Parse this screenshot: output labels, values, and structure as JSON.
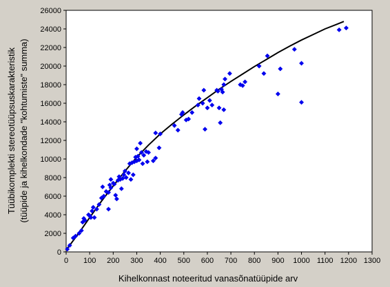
{
  "chart_data": {
    "type": "scatter",
    "title": "",
    "xlabel": "Kihelkonnast noteeritud vanasõnatüüpide arv",
    "ylabel": "Tüübikomplekti stereotüüpsuskarakteristik",
    "ylabel2": "(tüüpide ja kihelkondade \"kohtumiste\" summa)",
    "xlim": [
      0,
      1300
    ],
    "ylim": [
      0,
      26000
    ],
    "x_ticks": [
      0,
      100,
      200,
      300,
      400,
      500,
      600,
      700,
      800,
      900,
      1000,
      1100,
      1200,
      1300
    ],
    "y_ticks": [
      0,
      2000,
      4000,
      6000,
      8000,
      10000,
      12000,
      14000,
      16000,
      18000,
      20000,
      22000,
      24000,
      26000
    ],
    "grid": false,
    "point_color": "#0000ee",
    "line_color": "#000000",
    "series": [
      {
        "type": "scatter",
        "points": [
          [
            5,
            300
          ],
          [
            15,
            700
          ],
          [
            30,
            1500
          ],
          [
            40,
            1700
          ],
          [
            55,
            2000
          ],
          [
            65,
            2300
          ],
          [
            70,
            3200
          ],
          [
            75,
            3600
          ],
          [
            80,
            3400
          ],
          [
            95,
            4000
          ],
          [
            100,
            3900
          ],
          [
            105,
            3700
          ],
          [
            110,
            4400
          ],
          [
            115,
            4800
          ],
          [
            120,
            3700
          ],
          [
            130,
            4600
          ],
          [
            140,
            5100
          ],
          [
            150,
            5800
          ],
          [
            155,
            7000
          ],
          [
            160,
            6000
          ],
          [
            170,
            6500
          ],
          [
            180,
            4600
          ],
          [
            180,
            6400
          ],
          [
            185,
            7200
          ],
          [
            190,
            6900
          ],
          [
            190,
            7800
          ],
          [
            200,
            7400
          ],
          [
            205,
            7300
          ],
          [
            210,
            6100
          ],
          [
            215,
            5700
          ],
          [
            220,
            7700
          ],
          [
            225,
            8100
          ],
          [
            230,
            7800
          ],
          [
            235,
            6800
          ],
          [
            240,
            7900
          ],
          [
            245,
            8300
          ],
          [
            250,
            8700
          ],
          [
            255,
            8000
          ],
          [
            265,
            8500
          ],
          [
            270,
            9500
          ],
          [
            275,
            7800
          ],
          [
            280,
            9600
          ],
          [
            285,
            8300
          ],
          [
            290,
            9700
          ],
          [
            295,
            10200
          ],
          [
            300,
            9800
          ],
          [
            300,
            11100
          ],
          [
            305,
            10300
          ],
          [
            310,
            9900
          ],
          [
            315,
            11700
          ],
          [
            320,
            10700
          ],
          [
            325,
            9500
          ],
          [
            330,
            10400
          ],
          [
            340,
            10800
          ],
          [
            345,
            9700
          ],
          [
            350,
            10700
          ],
          [
            370,
            9800
          ],
          [
            380,
            10100
          ],
          [
            380,
            12800
          ],
          [
            395,
            11200
          ],
          [
            400,
            12700
          ],
          [
            460,
            13600
          ],
          [
            475,
            13100
          ],
          [
            490,
            14800
          ],
          [
            495,
            15000
          ],
          [
            510,
            14200
          ],
          [
            520,
            14300
          ],
          [
            535,
            15000
          ],
          [
            560,
            15800
          ],
          [
            565,
            16500
          ],
          [
            580,
            16000
          ],
          [
            585,
            17400
          ],
          [
            590,
            13200
          ],
          [
            600,
            15500
          ],
          [
            610,
            16300
          ],
          [
            620,
            15800
          ],
          [
            640,
            17400
          ],
          [
            645,
            17300
          ],
          [
            650,
            15500
          ],
          [
            655,
            13900
          ],
          [
            660,
            17500
          ],
          [
            665,
            17200
          ],
          [
            670,
            18000
          ],
          [
            670,
            15300
          ],
          [
            675,
            18600
          ],
          [
            695,
            19200
          ],
          [
            740,
            18000
          ],
          [
            750,
            17900
          ],
          [
            760,
            18300
          ],
          [
            820,
            20000
          ],
          [
            840,
            19200
          ],
          [
            855,
            21100
          ],
          [
            900,
            17000
          ],
          [
            910,
            19700
          ],
          [
            970,
            21800
          ],
          [
            1000,
            16100
          ],
          [
            1000,
            20300
          ],
          [
            1160,
            23900
          ],
          [
            1190,
            24100
          ]
        ]
      },
      {
        "type": "line",
        "points": [
          [
            0,
            200
          ],
          [
            50,
            1900
          ],
          [
            100,
            3700
          ],
          [
            150,
            5450
          ],
          [
            200,
            7100
          ],
          [
            250,
            8700
          ],
          [
            300,
            10200
          ],
          [
            350,
            11500
          ],
          [
            400,
            12700
          ],
          [
            450,
            13750
          ],
          [
            500,
            14750
          ],
          [
            550,
            15700
          ],
          [
            600,
            16600
          ],
          [
            650,
            17500
          ],
          [
            700,
            18350
          ],
          [
            750,
            19150
          ],
          [
            800,
            19950
          ],
          [
            850,
            20700
          ],
          [
            900,
            21450
          ],
          [
            950,
            22150
          ],
          [
            1000,
            22800
          ],
          [
            1050,
            23400
          ],
          [
            1100,
            24000
          ],
          [
            1150,
            24500
          ],
          [
            1180,
            24800
          ]
        ]
      }
    ]
  }
}
